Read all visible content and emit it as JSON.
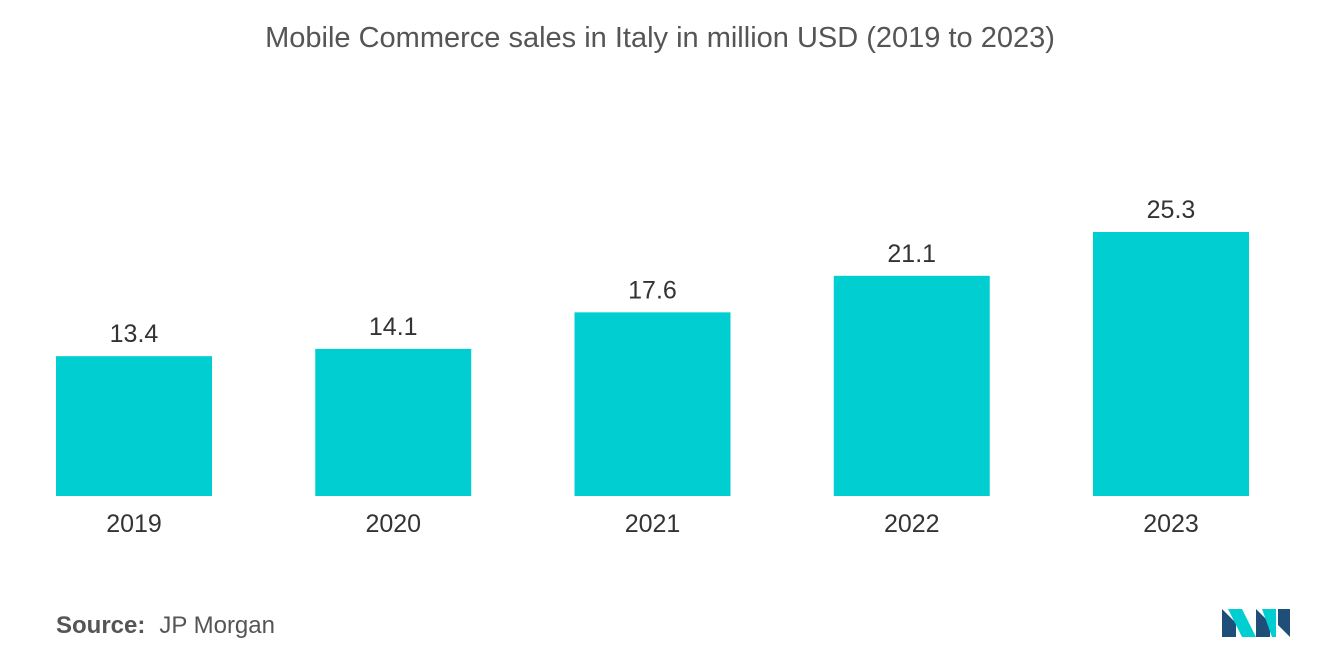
{
  "chart_data": {
    "type": "bar",
    "title": "Mobile Commerce sales in Italy in million USD (2019 to 2023)",
    "categories": [
      "2019",
      "2020",
      "2021",
      "2022",
      "2023"
    ],
    "values": [
      13.4,
      14.1,
      17.6,
      21.1,
      25.3
    ],
    "data_labels": [
      "13.4",
      "14.1",
      "17.6",
      "21.1",
      "25.3"
    ],
    "xlabel": "",
    "ylabel": "",
    "ylim": [
      0,
      25.3
    ],
    "grid": false,
    "bar_color": "#00CED1"
  },
  "source": {
    "label": "Source:",
    "text": "JP Morgan"
  },
  "logo": {
    "icon": "mordor-logo-icon",
    "colors": [
      "#1F4E79",
      "#00CED1"
    ]
  }
}
